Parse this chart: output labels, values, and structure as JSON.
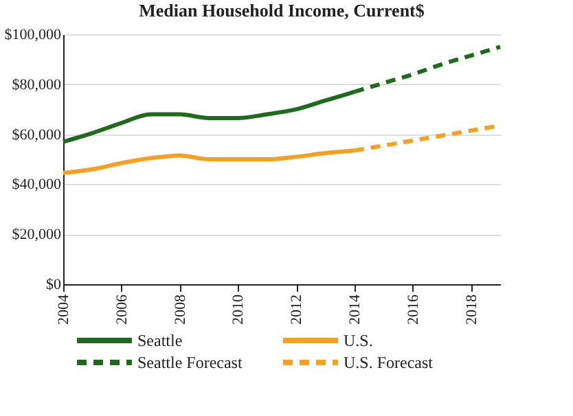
{
  "chart_data": {
    "type": "line",
    "title": "Median Household Income, Current$",
    "xlim": [
      2004,
      2019
    ],
    "xticks": [
      2004,
      2006,
      2008,
      2010,
      2012,
      2014,
      2016,
      2018
    ],
    "ylim": [
      0,
      100000
    ],
    "yticks": [
      {
        "value": 0,
        "label": "$0"
      },
      {
        "value": 20000,
        "label": "$20,000"
      },
      {
        "value": 40000,
        "label": "$40,000"
      },
      {
        "value": 60000,
        "label": "$60,000"
      },
      {
        "value": 80000,
        "label": "$80,000"
      },
      {
        "value": 100000,
        "label": "$100,000"
      }
    ],
    "grid": "y",
    "legend": "bottom",
    "marker": "none",
    "series": [
      {
        "name": "Seattle",
        "color": "#1e6b1e",
        "line_style": "solid",
        "x": [
          2004,
          2005,
          2006,
          2007,
          2008,
          2009,
          2010,
          2011,
          2012,
          2013,
          2014
        ],
        "values": [
          57000,
          60500,
          64500,
          68000,
          68000,
          66500,
          66500,
          68000,
          70000,
          73500,
          77000
        ]
      },
      {
        "name": "U.S.",
        "color": "#f5a020",
        "line_style": "solid",
        "x": [
          2004,
          2005,
          2006,
          2007,
          2008,
          2009,
          2010,
          2011,
          2012,
          2013,
          2014
        ],
        "values": [
          44500,
          46000,
          48500,
          50500,
          51500,
          50000,
          50000,
          50000,
          51000,
          52500,
          53500
        ]
      },
      {
        "name": "Seattle Forecast",
        "color": "#1e6b1e",
        "line_style": "dashed",
        "x": [
          2014,
          2015,
          2016,
          2017,
          2018,
          2019
        ],
        "values": [
          77000,
          80500,
          84000,
          88000,
          91500,
          95000
        ]
      },
      {
        "name": "U.S. Forecast",
        "color": "#f5a020",
        "line_style": "dashed",
        "x": [
          2014,
          2015,
          2016,
          2017,
          2018,
          2019
        ],
        "values": [
          53500,
          55500,
          57500,
          59500,
          61500,
          63500
        ]
      }
    ]
  }
}
